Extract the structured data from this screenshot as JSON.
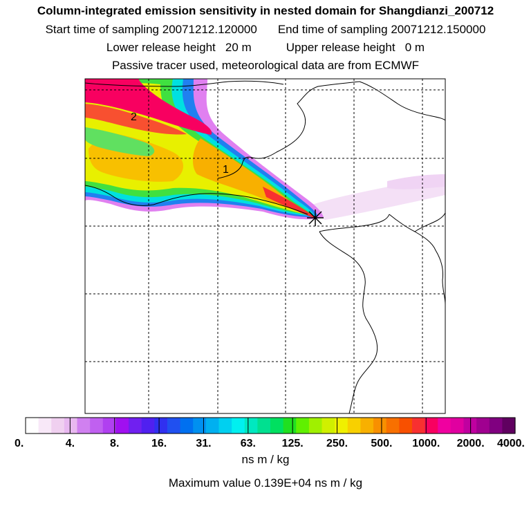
{
  "header": {
    "title": "Column-integrated emission sensitivity in nested domain for Shangdianzi_200712",
    "start_label": "Start time of sampling",
    "start_value": "20071212.120000",
    "end_label": "End time of sampling",
    "end_value": "20071212.150000",
    "lower_label": "Lower release height",
    "lower_value": "20 m",
    "upper_label": "Upper release height",
    "upper_value": "0 m",
    "subtitle": "Passive tracer used, meteorological data are from ECMWF"
  },
  "chart_data": {
    "type": "heatmap",
    "title": "Column-integrated emission sensitivity in nested domain for Shangdianzi_200712",
    "colorbar": {
      "unit": "ns m / kg",
      "tick_labels": [
        "0.",
        "4.",
        "8.",
        "16.",
        "31.",
        "63.",
        "125.",
        "250.",
        "500.",
        "1000.",
        "2000.",
        "4000."
      ],
      "tick_values": [
        0,
        4,
        8,
        16,
        31,
        63,
        125,
        250,
        500,
        1000,
        2000,
        4000
      ],
      "colors": [
        "#ffffff",
        "#f8e8f8",
        "#f0d0f0",
        "#e8b8f0",
        "#d080f0",
        "#c060f0",
        "#b040f0",
        "#a010f0",
        "#7020f0",
        "#5020f0",
        "#3030f0",
        "#2050f0",
        "#0070f0",
        "#0090f0",
        "#00b0f0",
        "#00d0f0",
        "#00f0f0",
        "#00e8c0",
        "#00e090",
        "#00e060",
        "#20e020",
        "#60f000",
        "#a0f000",
        "#d0f000",
        "#f0f000",
        "#f8d000",
        "#f8b000",
        "#f89000",
        "#f87000",
        "#f85000",
        "#f83030",
        "#f80060",
        "#f000a0",
        "#e000a0",
        "#c000a0",
        "#a00090",
        "#800080",
        "#600060"
      ]
    },
    "max_value_label": "Maximum value",
    "max_value": "0.139E+04",
    "max_value_unit": "ns m / kg",
    "receptor_marker": "Shangdianzi",
    "annotations": [
      "1",
      "2"
    ],
    "grid": true
  }
}
